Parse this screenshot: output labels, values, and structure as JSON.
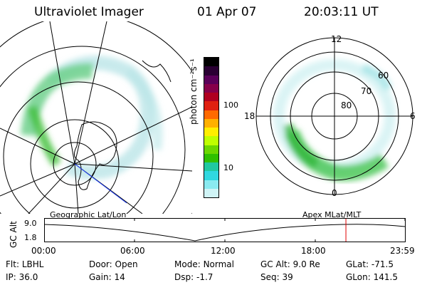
{
  "header": {
    "instrument": "Ultraviolet Imager",
    "date": "01 Apr 07",
    "time": "20:03:11 UT"
  },
  "colorbar": {
    "label": "photon cm⁻²s⁻¹",
    "ticks": [
      "100",
      "10"
    ],
    "colors": [
      "#000000",
      "#2a0033",
      "#5a0059",
      "#86004a",
      "#b00020",
      "#e02010",
      "#ff6a00",
      "#ffb000",
      "#ffee00",
      "#bfff00",
      "#6cd800",
      "#2fc000",
      "#20c8a0",
      "#30d8e0",
      "#8aeaf0",
      "#d0f4f6"
    ]
  },
  "left_map": {
    "caption": "Geographic Lat/Lon"
  },
  "right_map": {
    "caption": "Apex MLat/MLT",
    "mlt_labels": [
      "12",
      "18",
      "6",
      "0"
    ],
    "lat_labels": [
      "60",
      "70",
      "80"
    ]
  },
  "timeline": {
    "axis_label": "GC Alt",
    "y_ticks": [
      "9.0",
      "1.8"
    ],
    "x_ticks": [
      "00:00",
      "06:00",
      "12:00",
      "18:00",
      "23:59"
    ],
    "current_marker_hours": 20.05,
    "marker_color": "#e00000"
  },
  "info": {
    "row1": [
      {
        "key": "Flt:",
        "value": "LBHL"
      },
      {
        "key": "Door:",
        "value": "Open"
      },
      {
        "key": "Mode:",
        "value": "Normal"
      },
      {
        "key": "GC Alt:",
        "value": "9.0 Re"
      },
      {
        "key": "GLat:",
        "value": "-71.5"
      }
    ],
    "row2": [
      {
        "key": "IP:",
        "value": "36.0"
      },
      {
        "key": "Gain:",
        "value": "14"
      },
      {
        "key": "Dsp:",
        "value": "-1.7"
      },
      {
        "key": "Seq:",
        "value": "39"
      },
      {
        "key": "GLon:",
        "value": "141.5"
      }
    ]
  }
}
